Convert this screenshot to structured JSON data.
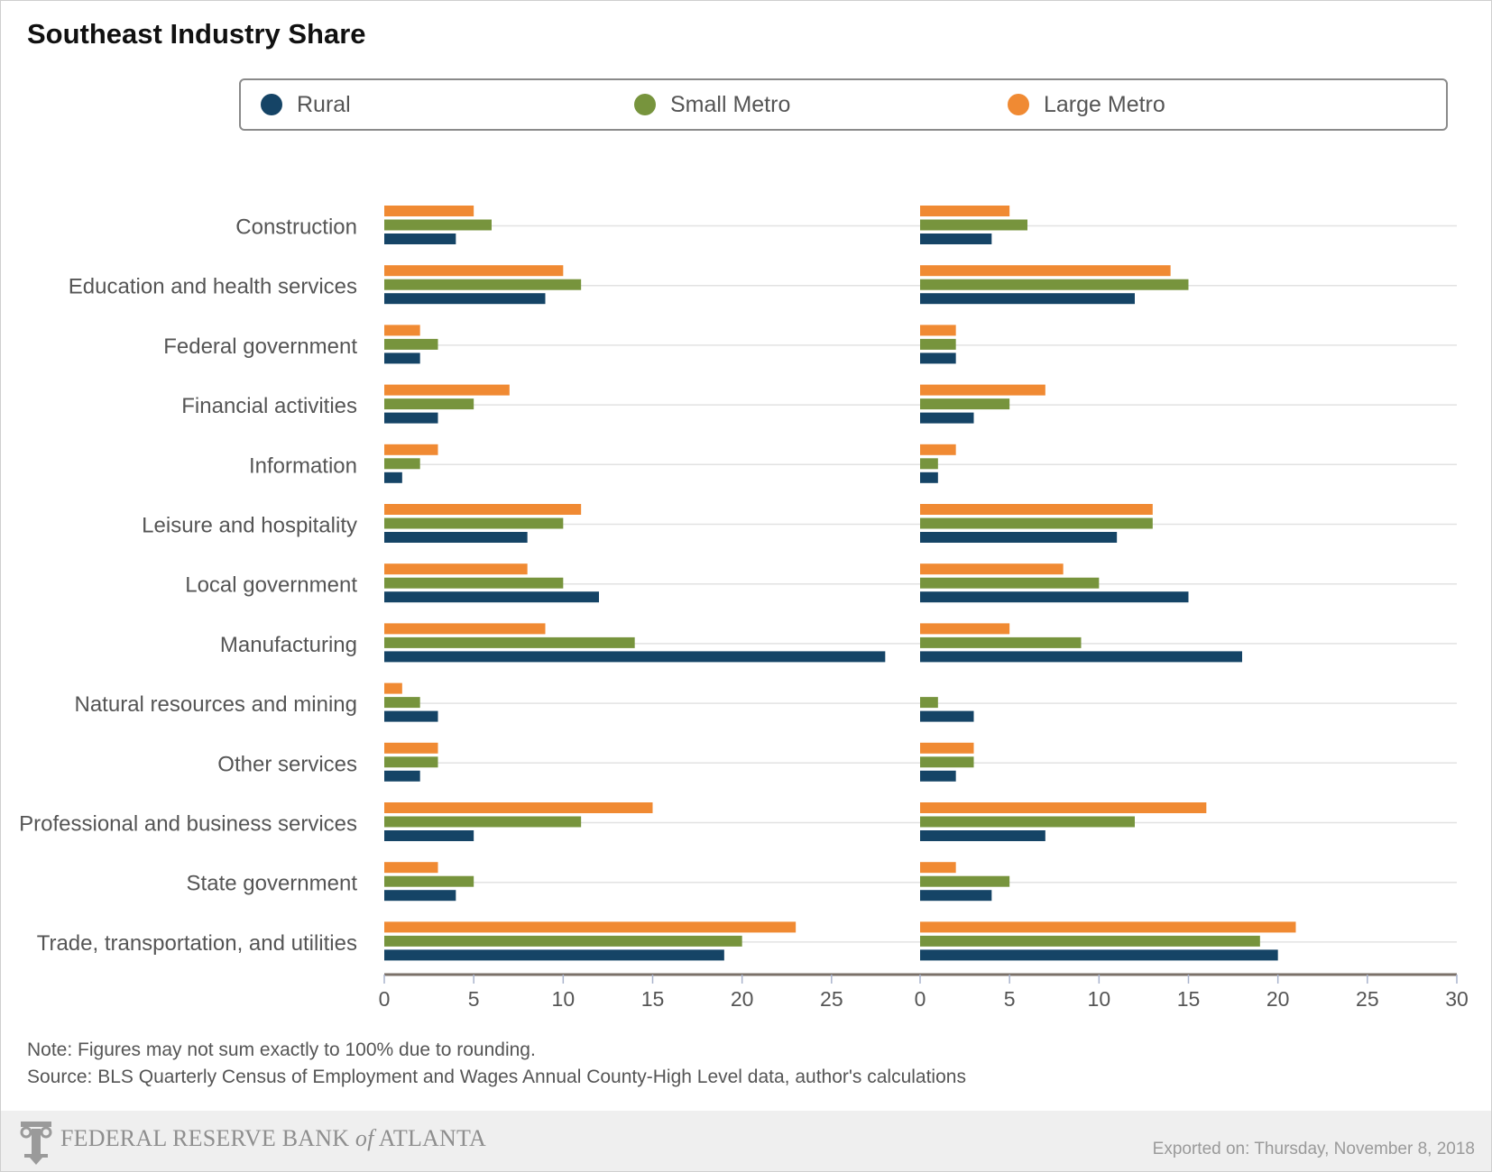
{
  "title": "Southeast Industry Share",
  "legend": [
    {
      "name": "Rural",
      "color": "#154466"
    },
    {
      "name": "Small Metro",
      "color": "#77943d"
    },
    {
      "name": "Large Metro",
      "color": "#f08a33"
    }
  ],
  "chart_data": {
    "type": "bar",
    "orientation": "horizontal",
    "categories": [
      "Construction",
      "Education and health services",
      "Federal government",
      "Financial activities",
      "Information",
      "Leisure and hospitality",
      "Local government",
      "Manufacturing",
      "Natural resources and mining",
      "Other services",
      "Professional and business services",
      "State government",
      "Trade, transportation, and utilities"
    ],
    "panels": [
      {
        "xlim": [
          0,
          30
        ],
        "x_ticks": [
          0,
          5,
          10,
          15,
          20,
          25
        ],
        "series": [
          {
            "name": "Large Metro",
            "values": [
              5,
              10,
              2,
              7,
              3,
              11,
              8,
              9,
              1,
              3,
              15,
              3,
              23
            ]
          },
          {
            "name": "Small Metro",
            "values": [
              6,
              11,
              3,
              5,
              2,
              10,
              10,
              14,
              2,
              3,
              11,
              5,
              20
            ]
          },
          {
            "name": "Rural",
            "values": [
              4,
              9,
              2,
              3,
              1,
              8,
              12,
              28,
              3,
              2,
              5,
              4,
              19
            ]
          }
        ]
      },
      {
        "xlim": [
          0,
          30
        ],
        "x_ticks": [
          0,
          5,
          10,
          15,
          20,
          25,
          30
        ],
        "series": [
          {
            "name": "Large Metro",
            "values": [
              5,
              14,
              2,
              7,
              2,
              13,
              8,
              5,
              0,
              3,
              16,
              2,
              21
            ]
          },
          {
            "name": "Small Metro",
            "values": [
              6,
              15,
              2,
              5,
              1,
              13,
              10,
              9,
              1,
              3,
              12,
              5,
              19
            ]
          },
          {
            "name": "Rural",
            "values": [
              4,
              12,
              2,
              3,
              1,
              11,
              15,
              18,
              3,
              2,
              7,
              4,
              20
            ]
          }
        ]
      }
    ],
    "grid": true,
    "legend_position": "top"
  },
  "notes": {
    "note": "Note: Figures may not sum exactly to 100% due to rounding.",
    "source": "Source: BLS Quarterly Census of Employment and Wages Annual County-High Level data, author's calculations"
  },
  "footer": {
    "brand_main": "FEDERAL RESERVE BANK ",
    "brand_of": "of",
    "brand_end": " ATLANTA",
    "export": "Exported on: Thursday, November 8, 2018"
  }
}
